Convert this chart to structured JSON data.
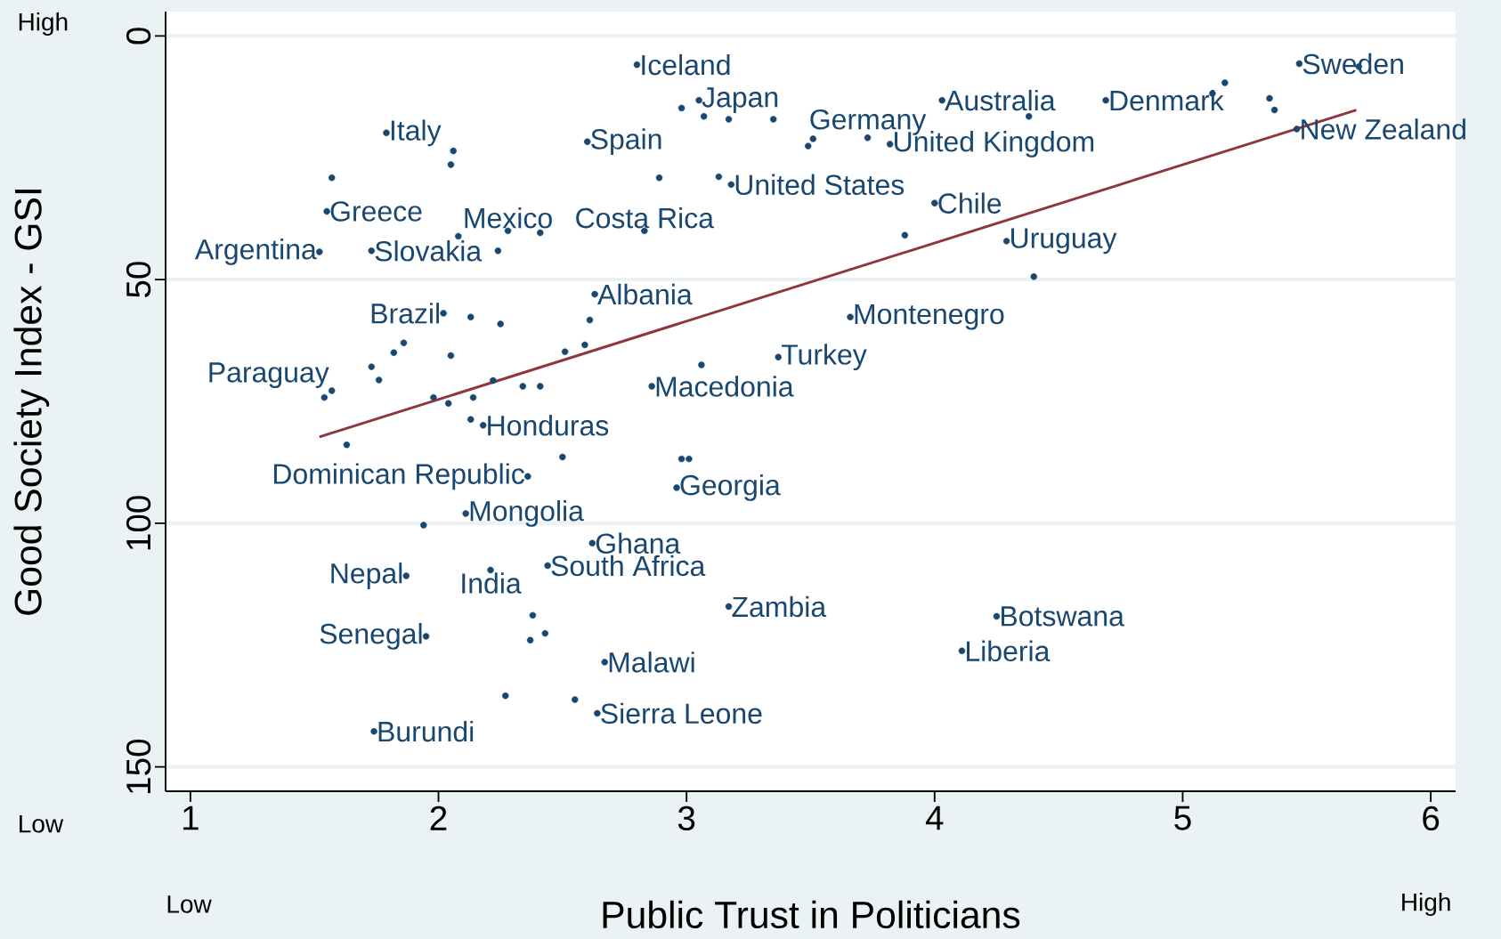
{
  "chart_data": {
    "type": "scatter",
    "xlabel": "Public Trust in Politicians",
    "ylabel": "Good Society Index - GSI",
    "xlim": [
      0.9,
      6.1
    ],
    "ylim": [
      155,
      -5
    ],
    "xticks": [
      1,
      2,
      3,
      4,
      5,
      6
    ],
    "yticks": [
      0,
      50,
      100,
      150
    ],
    "grid": "y",
    "series": [
      {
        "marker": "circle",
        "color": "#1a476f",
        "x": [
          2.8,
          3.05,
          3.73,
          4.03,
          4.69,
          5.47,
          5.46,
          3.82,
          2.6,
          1.79,
          3.18,
          2.83,
          2.28,
          1.55,
          4.0,
          1.73,
          1.52,
          4.29,
          2.63,
          2.02,
          3.66,
          3.37,
          1.57,
          2.86,
          2.18,
          2.36,
          2.96,
          2.11,
          2.62,
          2.44,
          1.87,
          2.21,
          3.17,
          4.25,
          1.95,
          4.11,
          2.67,
          2.64,
          1.74,
          2.98,
          3.07,
          3.17,
          3.35,
          3.49,
          3.51,
          2.06,
          2.05,
          1.57,
          2.89,
          3.13,
          3.88,
          4.4,
          4.38,
          5.17,
          5.12,
          5.35,
          5.37,
          5.71,
          2.08,
          2.24,
          2.41,
          2.13,
          2.25,
          2.61,
          2.59,
          2.51,
          1.86,
          1.82,
          2.05,
          3.06,
          2.22,
          2.34,
          2.41,
          1.98,
          2.04,
          2.14,
          2.13,
          1.63,
          2.5,
          2.98,
          3.01,
          1.94,
          2.38,
          2.37,
          2.43,
          2.27,
          2.55,
          1.73,
          1.76,
          1.54
        ],
        "values": [
          5.9,
          13.2,
          20.9,
          13.2,
          13.2,
          5.7,
          19.1,
          22.2,
          21.7,
          19.9,
          30.5,
          40.0,
          40.0,
          36.0,
          34.3,
          44.1,
          44.3,
          42.1,
          53.0,
          56.9,
          57.7,
          65.9,
          72.8,
          71.9,
          79.9,
          90.4,
          92.7,
          98.0,
          104.1,
          108.7,
          110.8,
          109.6,
          117.1,
          119.1,
          123.2,
          126.2,
          128.5,
          139.0,
          142.7,
          14.8,
          16.5,
          17.1,
          17.1,
          22.6,
          21.1,
          23.6,
          26.4,
          29.1,
          29.1,
          28.9,
          40.9,
          49.4,
          16.5,
          9.6,
          11.8,
          12.8,
          15.2,
          6.3,
          41.1,
          44.1,
          40.4,
          57.7,
          59.1,
          58.3,
          63.4,
          64.8,
          63.0,
          65.0,
          65.6,
          67.5,
          70.7,
          71.9,
          71.9,
          74.2,
          75.4,
          74.2,
          78.7,
          83.9,
          86.4,
          86.8,
          86.8,
          100.4,
          118.9,
          124.0,
          122.6,
          135.4,
          136.2,
          67.9,
          70.6,
          74.2
        ]
      },
      {
        "type": "line",
        "marker": "none",
        "color": "#90353b",
        "x": [
          1.52,
          5.7
        ],
        "values": [
          82.3,
          15.2
        ]
      }
    ],
    "annotations": [
      {
        "text": "Iceland",
        "x": 2.8,
        "y": 5.9
      },
      {
        "text": "Japan",
        "x": 3.05,
        "y": 13.2
      },
      {
        "text": "Germany",
        "x": 3.73,
        "y": 20.9
      },
      {
        "text": "Australia",
        "x": 4.03,
        "y": 13.2
      },
      {
        "text": "Denmark",
        "x": 4.69,
        "y": 13.2
      },
      {
        "text": "Sweden",
        "x": 5.47,
        "y": 5.7
      },
      {
        "text": "New Zealand",
        "x": 5.46,
        "y": 19.1
      },
      {
        "text": "United Kingdom",
        "x": 3.82,
        "y": 22.2
      },
      {
        "text": "Spain",
        "x": 2.6,
        "y": 21.7
      },
      {
        "text": "Italy",
        "x": 1.79,
        "y": 19.9
      },
      {
        "text": "United States",
        "x": 3.18,
        "y": 30.5
      },
      {
        "text": "Costa Rica",
        "x": 2.83,
        "y": 40.0
      },
      {
        "text": "Mexico",
        "x": 2.28,
        "y": 40.0
      },
      {
        "text": "Greece",
        "x": 1.55,
        "y": 36.0
      },
      {
        "text": "Chile",
        "x": 4.0,
        "y": 34.3
      },
      {
        "text": "Slovakia",
        "x": 1.73,
        "y": 44.1
      },
      {
        "text": "Argentina",
        "x": 1.52,
        "y": 44.3
      },
      {
        "text": "Uruguay",
        "x": 4.29,
        "y": 42.1
      },
      {
        "text": "Albania",
        "x": 2.63,
        "y": 53.0
      },
      {
        "text": "Brazil",
        "x": 2.02,
        "y": 56.9
      },
      {
        "text": "Montenegro",
        "x": 3.66,
        "y": 57.7
      },
      {
        "text": "Turkey",
        "x": 3.37,
        "y": 65.9
      },
      {
        "text": "Paraguay",
        "x": 1.57,
        "y": 72.8
      },
      {
        "text": "Macedonia",
        "x": 2.86,
        "y": 71.9
      },
      {
        "text": "Honduras",
        "x": 2.18,
        "y": 79.9
      },
      {
        "text": "Dominican Republic",
        "x": 2.36,
        "y": 90.4
      },
      {
        "text": "Georgia",
        "x": 2.96,
        "y": 92.7
      },
      {
        "text": "Mongolia",
        "x": 2.11,
        "y": 98.0
      },
      {
        "text": "Ghana",
        "x": 2.62,
        "y": 104.1
      },
      {
        "text": "South Africa",
        "x": 2.44,
        "y": 108.7
      },
      {
        "text": "Nepal",
        "x": 1.87,
        "y": 110.8
      },
      {
        "text": "India",
        "x": 2.21,
        "y": 109.6
      },
      {
        "text": "Zambia",
        "x": 3.17,
        "y": 117.1
      },
      {
        "text": "Botswana",
        "x": 4.25,
        "y": 119.1
      },
      {
        "text": "Senegal",
        "x": 1.95,
        "y": 123.2
      },
      {
        "text": "Liberia",
        "x": 4.11,
        "y": 126.2
      },
      {
        "text": "Malawi",
        "x": 2.67,
        "y": 128.5
      },
      {
        "text": "Sierra Leone",
        "x": 2.64,
        "y": 139.0
      },
      {
        "text": "Burundi",
        "x": 1.74,
        "y": 142.7
      },
      "High",
      "Low",
      "Low",
      "High"
    ]
  }
}
